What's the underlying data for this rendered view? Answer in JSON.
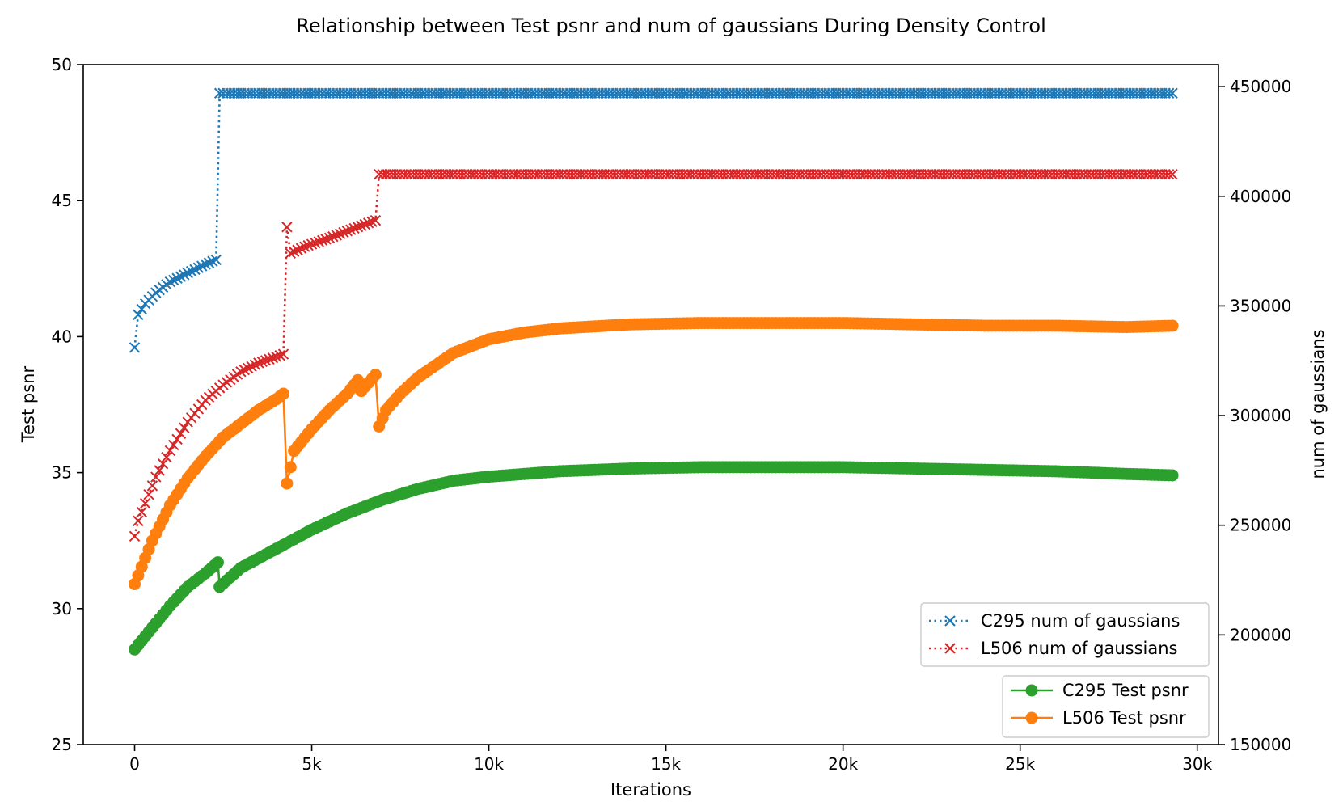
{
  "chart_data": {
    "type": "line",
    "title": "Relationship between Test psnr and num of gaussians During Density Control",
    "xlabel": "Iterations",
    "ylabel_left": "Test psnr",
    "ylabel_right": "num of gaussians",
    "xlim": [
      -1450,
      30600
    ],
    "ylim_left": [
      25,
      50
    ],
    "ylim_right": [
      150000,
      460000
    ],
    "x_ticks": [
      0,
      5000,
      10000,
      15000,
      20000,
      25000,
      30000
    ],
    "x_tick_labels": [
      "0",
      "5k",
      "10k",
      "15k",
      "20k",
      "25k",
      "30k"
    ],
    "y_left_ticks": [
      25,
      30,
      35,
      40,
      45,
      50
    ],
    "y_left_tick_labels": [
      "25",
      "30",
      "35",
      "40",
      "45",
      "50"
    ],
    "y_right_ticks": [
      150000,
      200000,
      250000,
      300000,
      350000,
      400000,
      450000
    ],
    "y_right_tick_labels": [
      "150000",
      "200000",
      "250000",
      "300000",
      "350000",
      "400000",
      "450000"
    ],
    "grid": false,
    "legend_gaussians": {
      "placement": "lower-right (upper box)",
      "entries": [
        "C295 num of gaussians",
        "L506 num of gaussians"
      ]
    },
    "legend_psnr": {
      "placement": "lower-right",
      "entries": [
        "C295 Test psnr",
        "L506 Test psnr"
      ]
    },
    "series": [
      {
        "name": "C295 num of gaussians",
        "axis": "right",
        "color": "#1f77b4",
        "linestyle": "dotted",
        "marker": "x",
        "points": [
          [
            0,
            331000
          ],
          [
            100,
            346000
          ],
          [
            300,
            351000
          ],
          [
            600,
            356000
          ],
          [
            1000,
            361000
          ],
          [
            1500,
            365000
          ],
          [
            2000,
            369000
          ],
          [
            2300,
            371000
          ],
          [
            2400,
            447000
          ],
          [
            5000,
            447000
          ],
          [
            10000,
            447000
          ],
          [
            15000,
            447000
          ],
          [
            20000,
            447000
          ],
          [
            25000,
            447000
          ],
          [
            29300,
            447000
          ]
        ]
      },
      {
        "name": "L506 num of gaussians",
        "axis": "right",
        "color": "#d62728",
        "linestyle": "dotted",
        "marker": "x",
        "points": [
          [
            0,
            245000
          ],
          [
            100,
            252000
          ],
          [
            300,
            260000
          ],
          [
            600,
            272000
          ],
          [
            1000,
            284000
          ],
          [
            1500,
            297000
          ],
          [
            2000,
            307000
          ],
          [
            2500,
            314000
          ],
          [
            3000,
            320000
          ],
          [
            3500,
            324000
          ],
          [
            4200,
            328000
          ],
          [
            4300,
            386000
          ],
          [
            4400,
            374000
          ],
          [
            4800,
            377000
          ],
          [
            5500,
            381000
          ],
          [
            6300,
            386000
          ],
          [
            6800,
            389000
          ],
          [
            6900,
            410000
          ],
          [
            10000,
            410000
          ],
          [
            15000,
            410000
          ],
          [
            20000,
            410000
          ],
          [
            25000,
            410000
          ],
          [
            29300,
            410000
          ]
        ]
      },
      {
        "name": "C295 Test psnr",
        "axis": "left",
        "color": "#2ca02c",
        "linestyle": "solid",
        "marker": "o",
        "points": [
          [
            0,
            28.5
          ],
          [
            500,
            29.3
          ],
          [
            1000,
            30.1
          ],
          [
            1500,
            30.8
          ],
          [
            2000,
            31.3
          ],
          [
            2350,
            31.7
          ],
          [
            2400,
            30.8
          ],
          [
            3000,
            31.5
          ],
          [
            4000,
            32.2
          ],
          [
            5000,
            32.9
          ],
          [
            6000,
            33.5
          ],
          [
            7000,
            34.0
          ],
          [
            8000,
            34.4
          ],
          [
            9000,
            34.7
          ],
          [
            10000,
            34.85
          ],
          [
            12000,
            35.05
          ],
          [
            14000,
            35.15
          ],
          [
            16000,
            35.2
          ],
          [
            18000,
            35.2
          ],
          [
            20000,
            35.2
          ],
          [
            22000,
            35.15
          ],
          [
            24000,
            35.1
          ],
          [
            26000,
            35.05
          ],
          [
            28000,
            34.95
          ],
          [
            29300,
            34.9
          ]
        ]
      },
      {
        "name": "L506 Test psnr",
        "axis": "left",
        "color": "#ff7f0e",
        "linestyle": "solid",
        "marker": "o",
        "points": [
          [
            0,
            30.9
          ],
          [
            500,
            32.5
          ],
          [
            1000,
            33.8
          ],
          [
            1500,
            34.8
          ],
          [
            2000,
            35.6
          ],
          [
            2500,
            36.3
          ],
          [
            3000,
            36.8
          ],
          [
            3500,
            37.3
          ],
          [
            4000,
            37.7
          ],
          [
            4200,
            37.9
          ],
          [
            4300,
            34.6
          ],
          [
            4500,
            35.8
          ],
          [
            5000,
            36.6
          ],
          [
            5500,
            37.3
          ],
          [
            6000,
            37.9
          ],
          [
            6300,
            38.4
          ],
          [
            6400,
            38.0
          ],
          [
            6800,
            38.6
          ],
          [
            6900,
            36.7
          ],
          [
            7100,
            37.3
          ],
          [
            7500,
            37.9
          ],
          [
            8000,
            38.5
          ],
          [
            9000,
            39.4
          ],
          [
            10000,
            39.9
          ],
          [
            11000,
            40.15
          ],
          [
            12000,
            40.3
          ],
          [
            14000,
            40.45
          ],
          [
            16000,
            40.5
          ],
          [
            18000,
            40.5
          ],
          [
            20000,
            40.5
          ],
          [
            22000,
            40.45
          ],
          [
            24000,
            40.4
          ],
          [
            26000,
            40.4
          ],
          [
            28000,
            40.35
          ],
          [
            29300,
            40.4
          ]
        ]
      }
    ]
  }
}
